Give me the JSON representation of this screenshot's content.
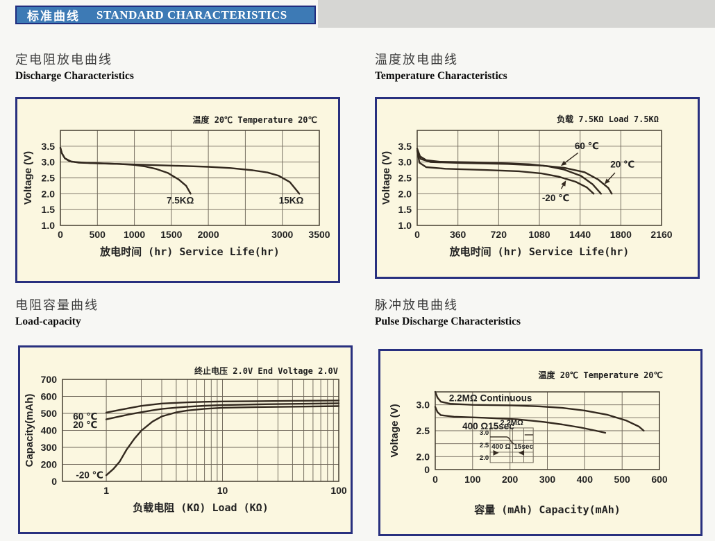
{
  "banner": {
    "title_cn": "标准曲线",
    "title_en": "STANDARD CHARACTERISTICS"
  },
  "colors": {
    "banner_bg": "#3d7ab5",
    "banner_border": "#202c7e",
    "banner_text": "#ffffff",
    "panel_border": "#28307f",
    "panel_bg": "#fbf7e0",
    "grid": "#6f675a",
    "frame": "#453e31",
    "curve": "#33291f",
    "text": "#222222",
    "page_bg": "#f7f7f4"
  },
  "sections": [
    {
      "title_cn": "定电阻放电曲线",
      "title_en": "Discharge Characteristics"
    },
    {
      "title_cn": "温度放电曲线",
      "title_en": "Temperature Characteristics"
    },
    {
      "title_cn": "电阻容量曲线",
      "title_en": "Load-capacity"
    },
    {
      "title_cn": "脉冲放电曲线",
      "title_en": "Pulse Discharge Characteristics"
    }
  ],
  "chart_data": [
    {
      "type": "line",
      "annotation": "温度 20℃  Temperature 20℃",
      "xlabel": "放电时间 (hr) Service Life(hr)",
      "ylabel": "Voltage (V)",
      "x_axis": {
        "scale": "linear",
        "min": 0,
        "max": 3500,
        "gridlines": [
          500,
          1000,
          1500,
          2000,
          2500,
          3000
        ],
        "ticks": [
          {
            "v": 0,
            "t": "0"
          },
          {
            "v": 500,
            "t": "500"
          },
          {
            "v": 1000,
            "t": "1000"
          },
          {
            "v": 1500,
            "t": "1500"
          },
          {
            "v": 2000,
            "t": "2000"
          },
          {
            "v": 3000,
            "t": "3000"
          },
          {
            "v": 3500,
            "t": "3500"
          }
        ]
      },
      "y_axis": {
        "rows": [
          1.0,
          1.5,
          2.0,
          2.5,
          3.0,
          3.5,
          4.0
        ],
        "ticks": [
          {
            "v": 1.0,
            "t": "1.0"
          },
          {
            "v": 1.5,
            "t": "1.5"
          },
          {
            "v": 2.0,
            "t": "2.0"
          },
          {
            "v": 2.5,
            "t": "2.5"
          },
          {
            "v": 3.0,
            "t": "3.0"
          },
          {
            "v": 3.5,
            "t": "3.5"
          }
        ]
      },
      "series": [
        {
          "name": "7.5KΩ",
          "points": [
            [
              0,
              3.45
            ],
            [
              20,
              3.28
            ],
            [
              60,
              3.12
            ],
            [
              120,
              3.03
            ],
            [
              250,
              2.98
            ],
            [
              500,
              2.96
            ],
            [
              800,
              2.94
            ],
            [
              1000,
              2.91
            ],
            [
              1150,
              2.86
            ],
            [
              1300,
              2.78
            ],
            [
              1450,
              2.66
            ],
            [
              1600,
              2.45
            ],
            [
              1700,
              2.25
            ],
            [
              1760,
              2.0
            ]
          ]
        },
        {
          "name": "15KΩ",
          "points": [
            [
              0,
              3.45
            ],
            [
              20,
              3.28
            ],
            [
              60,
              3.12
            ],
            [
              150,
              3.01
            ],
            [
              400,
              2.97
            ],
            [
              800,
              2.94
            ],
            [
              1200,
              2.91
            ],
            [
              1600,
              2.88
            ],
            [
              2000,
              2.85
            ],
            [
              2300,
              2.81
            ],
            [
              2600,
              2.74
            ],
            [
              2800,
              2.67
            ],
            [
              2950,
              2.57
            ],
            [
              3100,
              2.37
            ],
            [
              3230,
              2.0
            ]
          ]
        }
      ],
      "series_labels": [
        {
          "text": "7.5KΩ",
          "x": 1620,
          "y": 1.78
        },
        {
          "text": "15KΩ",
          "x": 3120,
          "y": 1.78
        }
      ]
    },
    {
      "type": "line",
      "annotation": "负载 7.5KΩ  Load 7.5KΩ",
      "xlabel": "放电时间 (hr) Service Life(hr)",
      "ylabel": "Voltage (V)",
      "x_axis": {
        "scale": "linear",
        "min": 0,
        "max": 2160,
        "gridlines": [
          360,
          720,
          1080,
          1440,
          1800
        ],
        "ticks": [
          {
            "v": 0,
            "t": "0"
          },
          {
            "v": 360,
            "t": "360"
          },
          {
            "v": 720,
            "t": "720"
          },
          {
            "v": 1080,
            "t": "1080"
          },
          {
            "v": 1440,
            "t": "1440"
          },
          {
            "v": 1800,
            "t": "1800"
          },
          {
            "v": 2160,
            "t": "2160"
          }
        ]
      },
      "y_axis": {
        "rows": [
          1.0,
          1.5,
          2.0,
          2.5,
          3.0,
          3.5,
          4.0
        ],
        "ticks": [
          {
            "v": 1.0,
            "t": "1.0"
          },
          {
            "v": 1.5,
            "t": "1.5"
          },
          {
            "v": 2.0,
            "t": "2.0"
          },
          {
            "v": 2.5,
            "t": "2.5"
          },
          {
            "v": 3.0,
            "t": "3.0"
          },
          {
            "v": 3.5,
            "t": "3.5"
          }
        ]
      },
      "series": [
        {
          "name": "60℃",
          "points": [
            [
              0,
              3.42
            ],
            [
              25,
              3.18
            ],
            [
              80,
              3.06
            ],
            [
              200,
              3.01
            ],
            [
              500,
              2.99
            ],
            [
              800,
              2.96
            ],
            [
              1000,
              2.93
            ],
            [
              1150,
              2.87
            ],
            [
              1300,
              2.76
            ],
            [
              1450,
              2.56
            ],
            [
              1550,
              2.3
            ],
            [
              1625,
              2.0
            ]
          ]
        },
        {
          "name": "20℃",
          "points": [
            [
              0,
              3.42
            ],
            [
              30,
              3.1
            ],
            [
              120,
              3.0
            ],
            [
              400,
              2.97
            ],
            [
              800,
              2.94
            ],
            [
              1100,
              2.89
            ],
            [
              1300,
              2.82
            ],
            [
              1480,
              2.68
            ],
            [
              1600,
              2.45
            ],
            [
              1690,
              2.18
            ],
            [
              1720,
              2.0
            ]
          ]
        },
        {
          "name": "-20℃",
          "points": [
            [
              0,
              3.36
            ],
            [
              20,
              2.98
            ],
            [
              80,
              2.84
            ],
            [
              250,
              2.79
            ],
            [
              600,
              2.75
            ],
            [
              900,
              2.71
            ],
            [
              1100,
              2.64
            ],
            [
              1250,
              2.54
            ],
            [
              1400,
              2.38
            ],
            [
              1500,
              2.2
            ],
            [
              1560,
              2.0
            ]
          ]
        }
      ],
      "series_labels": [],
      "arrows": [
        {
          "text": "60 ℃",
          "tx": 1500,
          "ty": 3.5,
          "x2": 1270,
          "y2": 2.88
        },
        {
          "text": "20 ℃",
          "tx": 1815,
          "ty": 2.92,
          "x2": 1655,
          "y2": 2.3
        },
        {
          "text": "-20 ℃",
          "tx": 1225,
          "ty": 1.85,
          "x2": 1315,
          "y2": 2.42
        }
      ]
    },
    {
      "type": "line",
      "annotation": "终止电压 2.0V End Voltage 2.0V",
      "xlabel": "负载电阻 (KΩ) Load (KΩ)",
      "ylabel": "Capacity(mAh)",
      "x_axis": {
        "scale": "log",
        "min": 0.42,
        "max": 100,
        "gridlines": [
          1,
          2,
          3,
          4,
          5,
          6,
          7,
          8,
          9,
          10,
          20,
          30,
          40,
          50,
          60,
          70,
          80,
          90
        ],
        "ticks": [
          {
            "v": 1,
            "t": "1"
          },
          {
            "v": 10,
            "t": "10"
          },
          {
            "v": 100,
            "t": "100"
          }
        ]
      },
      "y_axis": {
        "rows": [
          0,
          200,
          300,
          400,
          500,
          600,
          700
        ],
        "ticks": [
          {
            "v": 0,
            "t": "0"
          },
          {
            "v": 200,
            "t": "200"
          },
          {
            "v": 300,
            "t": "300"
          },
          {
            "v": 400,
            "t": "400"
          },
          {
            "v": 500,
            "t": "500"
          },
          {
            "v": 600,
            "t": "600"
          },
          {
            "v": 700,
            "t": "700"
          }
        ]
      },
      "series": [
        {
          "name": "60℃",
          "points": [
            [
              1,
              505
            ],
            [
              1.3,
              520
            ],
            [
              1.6,
              532
            ],
            [
              2,
              544
            ],
            [
              2.5,
              552
            ],
            [
              3,
              558
            ],
            [
              4,
              562
            ],
            [
              5,
              565
            ],
            [
              7,
              568
            ],
            [
              10,
              570
            ],
            [
              20,
              572
            ],
            [
              40,
              574
            ],
            [
              100,
              576
            ]
          ]
        },
        {
          "name": "20℃",
          "points": [
            [
              1,
              465
            ],
            [
              1.3,
              482
            ],
            [
              1.6,
              495
            ],
            [
              2,
              507
            ],
            [
              2.5,
              518
            ],
            [
              3,
              526
            ],
            [
              4,
              534
            ],
            [
              5,
              539
            ],
            [
              7,
              545
            ],
            [
              10,
              549
            ],
            [
              20,
              553
            ],
            [
              40,
              556
            ],
            [
              100,
              559
            ]
          ]
        },
        {
          "name": "-20℃",
          "points": [
            [
              1,
              72
            ],
            [
              1.15,
              145
            ],
            [
              1.3,
              215
            ],
            [
              1.5,
              288
            ],
            [
              1.75,
              352
            ],
            [
              2,
              398
            ],
            [
              2.5,
              452
            ],
            [
              3,
              482
            ],
            [
              4,
              506
            ],
            [
              5,
              517
            ],
            [
              7,
              527
            ],
            [
              10,
              533
            ],
            [
              20,
              537
            ],
            [
              50,
              540
            ],
            [
              100,
              543
            ]
          ]
        }
      ],
      "series_labels": [
        {
          "text": "60 ℃",
          "x": 0.66,
          "y": 480
        },
        {
          "text": "20 ℃",
          "x": 0.66,
          "y": 430
        },
        {
          "text": "-20 ℃",
          "x": 0.72,
          "y": 70
        }
      ]
    },
    {
      "type": "line",
      "annotation": "温度 20℃ Temperature 20℃",
      "xlabel": "容量 (mAh) Capacity(mAh)",
      "ylabel": "Voltage (V)",
      "x_axis": {
        "scale": "linear",
        "min": 0,
        "max": 600,
        "gridlines": [
          100,
          200,
          300,
          400,
          500
        ],
        "ticks": [
          {
            "v": 0,
            "t": "0"
          },
          {
            "v": 100,
            "t": "100"
          },
          {
            "v": 200,
            "t": "200"
          },
          {
            "v": 300,
            "t": "300"
          },
          {
            "v": 400,
            "t": "400"
          },
          {
            "v": 500,
            "t": "500"
          },
          {
            "v": 600,
            "t": "600"
          }
        ]
      },
      "y_axis": {
        "rows": [
          0,
          2.0,
          2.25,
          2.5,
          2.75,
          3.0,
          3.25
        ],
        "ticks": [
          {
            "v": 0,
            "t": "0"
          },
          {
            "v": 2.0,
            "t": "2.0"
          },
          {
            "v": 2.5,
            "t": "2.5"
          },
          {
            "v": 3.0,
            "t": "3.0"
          }
        ]
      },
      "series": [
        {
          "name": "2.2MΩ Continuous",
          "points": [
            [
              0,
              3.25
            ],
            [
              6,
              3.14
            ],
            [
              15,
              3.06
            ],
            [
              40,
              3.02
            ],
            [
              100,
              3.0
            ],
            [
              200,
              2.99
            ],
            [
              280,
              2.97
            ],
            [
              340,
              2.94
            ],
            [
              400,
              2.89
            ],
            [
              460,
              2.81
            ],
            [
              510,
              2.7
            ],
            [
              545,
              2.58
            ],
            [
              558,
              2.5
            ]
          ]
        },
        {
          "name": "400 Ω15sec",
          "points": [
            [
              0,
              2.96
            ],
            [
              6,
              2.86
            ],
            [
              15,
              2.8
            ],
            [
              50,
              2.77
            ],
            [
              130,
              2.75
            ],
            [
              220,
              2.72
            ],
            [
              290,
              2.67
            ],
            [
              340,
              2.62
            ],
            [
              390,
              2.56
            ],
            [
              430,
              2.5
            ],
            [
              455,
              2.46
            ]
          ]
        }
      ],
      "series_labels": [
        {
          "text": "2.2MΩ Continuous",
          "x": 148,
          "y": 3.12
        },
        {
          "text": "400 Ω15sec",
          "x": 142,
          "y": 2.58
        }
      ],
      "inset": {
        "top_label": "2.2MΩ",
        "y_labels": [
          "3.0",
          "2.5",
          "2.0"
        ],
        "pulse_left": "400 Ω",
        "pulse_right": "15sec"
      }
    }
  ]
}
